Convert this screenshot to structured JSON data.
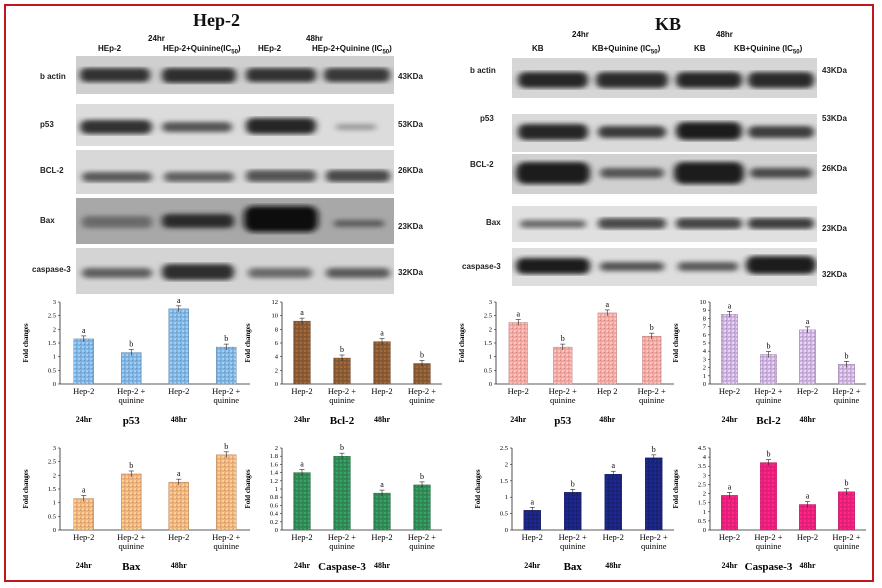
{
  "hep2": {
    "title": "Hep-2",
    "time_24": "24hr",
    "time_48": "48hr",
    "lanes": [
      "HEp-2",
      "HEp-2+Quinine(IC",
      "HEp-2",
      "HEp-2+Quinine (IC"
    ],
    "ic_sub": "50",
    "ic_close": ")",
    "proteins": [
      {
        "label": "b actin",
        "kda": "43KDa"
      },
      {
        "label": "p53",
        "kda": "53KDa"
      },
      {
        "label": "BCL-2",
        "kda": "26KDa"
      },
      {
        "label": "Bax",
        "kda": "23KDa"
      },
      {
        "label": "caspase-3",
        "kda": "32KDa"
      }
    ]
  },
  "kb": {
    "title": "KB",
    "time_24": "24hr",
    "time_48": "48hr",
    "lanes": [
      "KB",
      "KB+Quinine (IC",
      "KB",
      "KB+Quinine (IC"
    ],
    "ic_sub": "50",
    "ic_close": ")",
    "proteins": [
      {
        "label": "b actin",
        "kda": "43KDa"
      },
      {
        "label": "p53",
        "kda": "53KDa"
      },
      {
        "label": "BCL-2",
        "kda": "26KDa"
      },
      {
        "label": "Bax",
        "kda": "23KDa"
      },
      {
        "label": "caspase-3",
        "kda": "32KDa"
      }
    ]
  },
  "chart_data": [
    {
      "type": "bar",
      "title": "p53",
      "ylabel": "Fold changes",
      "ylim": [
        0,
        3
      ],
      "yticks": [
        0,
        0.5,
        1,
        1.5,
        2,
        2.5,
        3
      ],
      "categories": [
        "Hep-2",
        "Hep-2 + quinine",
        "Hep-2",
        "Hep-2 + quinine"
      ],
      "values": [
        1.65,
        1.15,
        2.75,
        1.35
      ],
      "letters": [
        "a",
        "b",
        "a",
        "b"
      ],
      "group_labels": [
        "24hr",
        "48hr"
      ],
      "color": "#7fb2e0"
    },
    {
      "type": "bar",
      "title": "Bcl-2",
      "ylabel": "Fold changes",
      "ylim": [
        0,
        12
      ],
      "yticks": [
        0,
        2,
        4,
        6,
        8,
        10,
        12
      ],
      "categories": [
        "Hep-2",
        "Hep-2 + quinine",
        "Hep-2",
        "Hep-2 + quinine"
      ],
      "values": [
        9.2,
        3.8,
        6.2,
        3.0
      ],
      "letters": [
        "a",
        "b",
        "a",
        "b"
      ],
      "group_labels": [
        "24hr",
        "48hr"
      ],
      "color": "#8a5a32"
    },
    {
      "type": "bar",
      "title": "p53",
      "ylabel": "Fold changes",
      "ylim": [
        0,
        3
      ],
      "yticks": [
        0,
        0.5,
        1,
        1.5,
        2,
        2.5,
        3
      ],
      "categories": [
        "Hep-2",
        "Hep-2 + quinine",
        "Hep 2",
        "Hep-2 + quinine"
      ],
      "values": [
        2.25,
        1.35,
        2.6,
        1.75
      ],
      "letters": [
        "a",
        "b",
        "a",
        "b"
      ],
      "group_labels": [
        "24hr",
        "48hr"
      ],
      "color": "#f4a5a0"
    },
    {
      "type": "bar",
      "title": "Bcl-2",
      "ylabel": "Fold changes",
      "ylim": [
        0,
        10
      ],
      "yticks": [
        0,
        1,
        2,
        3,
        4,
        5,
        6,
        7,
        8,
        9,
        10
      ],
      "categories": [
        "Hep-2",
        "Hep-2 + quinine",
        "Hep-2",
        "Hep-2 + quinine"
      ],
      "values": [
        8.5,
        3.6,
        6.6,
        2.4
      ],
      "letters": [
        "a",
        "b",
        "a",
        "b"
      ],
      "group_labels": [
        "24hr",
        "48hr"
      ],
      "color": "#c9b0dc"
    },
    {
      "type": "bar",
      "title": "Bax",
      "ylabel": "Fold changes",
      "ylim": [
        0,
        3
      ],
      "yticks": [
        0,
        0.5,
        1,
        1.5,
        2,
        2.5,
        3
      ],
      "categories": [
        "Hep-2",
        "Hep-2 + quinine",
        "Hep-2",
        "Hep-2 + quinine"
      ],
      "values": [
        1.15,
        2.05,
        1.75,
        2.75
      ],
      "letters": [
        "a",
        "b",
        "a",
        "b"
      ],
      "group_labels": [
        "24hr",
        "48hr"
      ],
      "color": "#f0b07a"
    },
    {
      "type": "bar",
      "title": "Caspase-3",
      "ylabel": "Fold changes",
      "ylim": [
        0,
        2
      ],
      "yticks": [
        0,
        0.2,
        0.4,
        0.6,
        0.8,
        1,
        1.2,
        1.4,
        1.6,
        1.8,
        2
      ],
      "categories": [
        "Hep-2",
        "Hep-2 + quinine",
        "Hep-2",
        "Hep-2 + quinine"
      ],
      "values": [
        1.4,
        1.8,
        0.9,
        1.1
      ],
      "letters": [
        "a",
        "b",
        "a",
        "b"
      ],
      "group_labels": [
        "24hr",
        "48hr"
      ],
      "color": "#2f8a55"
    },
    {
      "type": "bar",
      "title": "Bax",
      "ylabel": "Fold changes",
      "ylim": [
        0,
        2.5
      ],
      "yticks": [
        0,
        0.5,
        1,
        1.5,
        2,
        2.5
      ],
      "categories": [
        "Hep-2",
        "Hep-2 + quinine",
        "Hep-2",
        "Hep-2 + quinine"
      ],
      "values": [
        0.6,
        1.15,
        1.7,
        2.2
      ],
      "letters": [
        "a",
        "b",
        "a",
        "b"
      ],
      "group_labels": [
        "24hr",
        "48hr"
      ],
      "color": "#1a237e"
    },
    {
      "type": "bar",
      "title": "Caspase-3",
      "ylabel": "Fold changes",
      "ylim": [
        0,
        4.5
      ],
      "yticks": [
        0,
        0.5,
        1,
        1.5,
        2,
        2.5,
        3,
        3.5,
        4,
        4.5
      ],
      "categories": [
        "Hep-2",
        "Hep-2 + quinine",
        "Hep-2",
        "Hep-2 + quinine"
      ],
      "values": [
        1.9,
        3.7,
        1.4,
        2.1
      ],
      "letters": [
        "a",
        "b",
        "a",
        "b"
      ],
      "group_labels": [
        "24hr",
        "48hr"
      ],
      "color": "#ee1d7a"
    }
  ]
}
